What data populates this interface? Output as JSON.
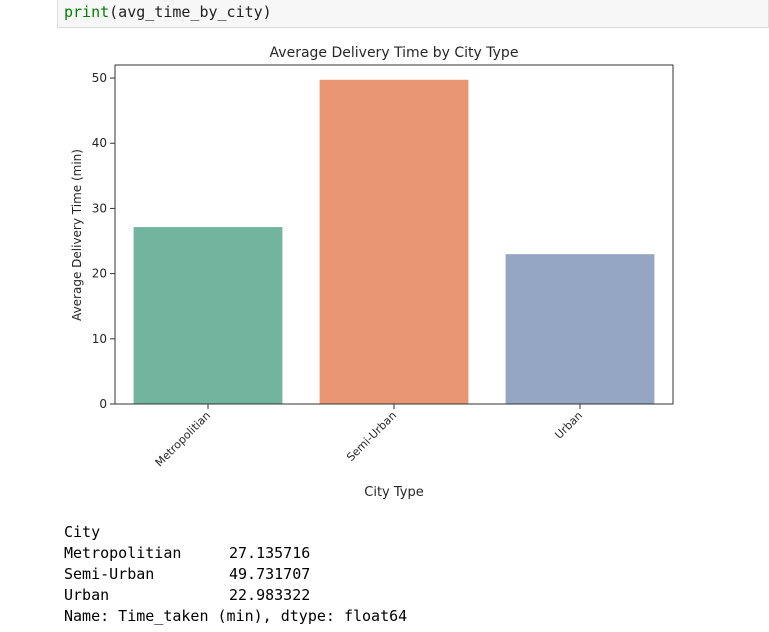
{
  "code_cell": {
    "fn_name": "print",
    "args": "(avg_time_by_city)"
  },
  "chart_data": {
    "type": "bar",
    "title": "Average Delivery Time by City Type",
    "xlabel": "City Type",
    "ylabel": "Average Delivery Time (min)",
    "categories": [
      "Metropolitian",
      "Semi-Urban",
      "Urban"
    ],
    "values": [
      27.135716,
      49.731707,
      22.983322
    ],
    "colors": [
      "#72b59f",
      "#e99772",
      "#95a5c4"
    ],
    "ylim": [
      0,
      52
    ],
    "yticks": [
      0,
      10,
      20,
      30,
      40,
      50
    ],
    "grid": false,
    "legend": "none"
  },
  "output": {
    "header": "City",
    "rows": [
      {
        "key": "Metropolitian",
        "value": "27.135716"
      },
      {
        "key": "Semi-Urban",
        "value": "49.731707"
      },
      {
        "key": "Urban",
        "value": "22.983322"
      }
    ],
    "footer": "Name: Time_taken (min), dtype: float64"
  }
}
